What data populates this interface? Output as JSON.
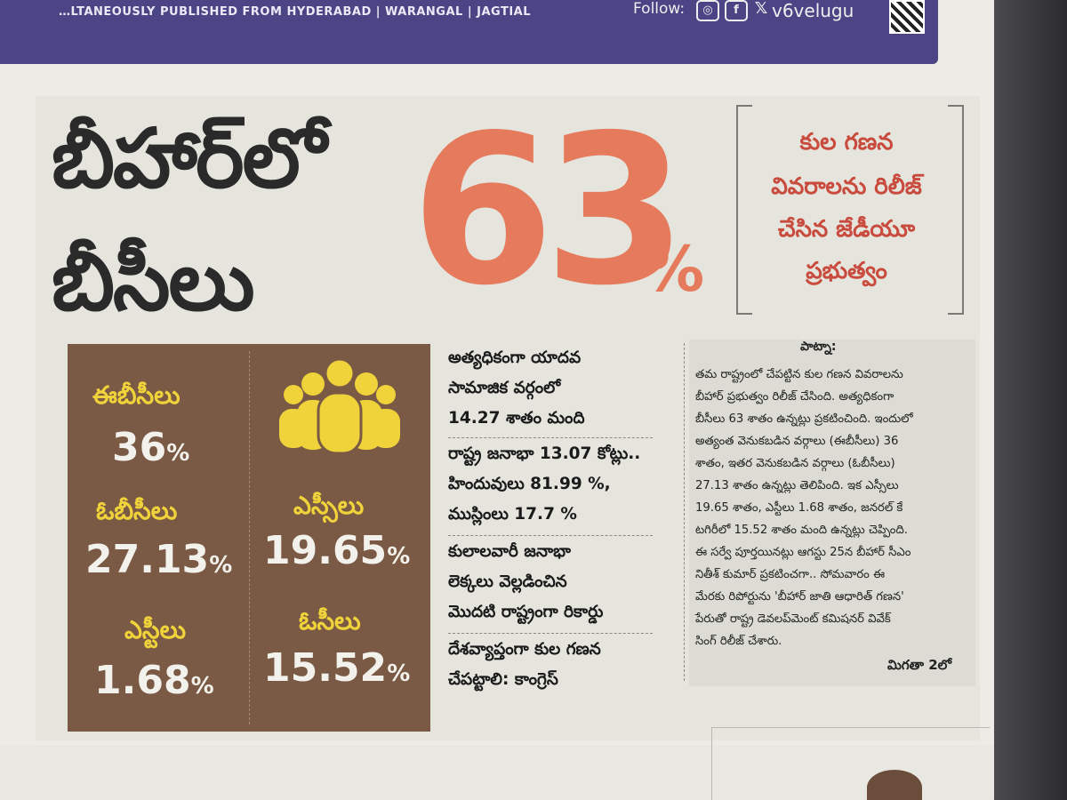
{
  "masthead": {
    "published_from": "…LTANEOUSLY PUBLISHED FROM HYDERABAD | WARANGAL | JAGTIAL",
    "follow_label": "Follow:",
    "handle": "v6velugu",
    "social_icons": [
      "instagram-icon",
      "facebook-icon",
      "x-icon"
    ]
  },
  "headline": {
    "line1": "బీహార్‌లో",
    "line2": "బీసీలు",
    "big_number": "63",
    "percent_sign": "%"
  },
  "subhead": {
    "lines": [
      "కుల గణన",
      "వివరాలను రిలీజ్",
      "చేసిన జేడీయూ",
      "ప్రభుత్వం"
    ]
  },
  "stats": [
    {
      "label": "ఈబీసీలు",
      "value": "36",
      "unit": "%"
    },
    {
      "label": "ఓబీసీలు",
      "value": "27.13",
      "unit": "%"
    },
    {
      "label": "ఎస్సీలు",
      "value": "19.65",
      "unit": "%"
    },
    {
      "label": "ఎస్టీలు",
      "value": "1.68",
      "unit": "%"
    },
    {
      "label": "ఓసీలు",
      "value": "15.52",
      "unit": "%"
    }
  ],
  "highlights": [
    "అత్యధికంగా యాదవ",
    "సామాజిక వర్గంలో",
    "14.27 శాతం మంది",
    "రాష్ట్ర జనాభా 13.07 కోట్లు..",
    "హిందువులు 81.99 %,",
    "ముస్లింలు 17.7 %",
    "కులాలవారీ జనాభా",
    "లెక్కలు వెల్లడించిన",
    "మొదటి రాష్ట్రంగా రికార్డు",
    "దేశవ్యాప్తంగా కుల గణన",
    "చేపట్టాలి: కాంగ్రెస్"
  ],
  "article": {
    "dateline": "పాట్నా:",
    "lines": [
      "తమ రాష్ట్రంలో చేపట్టిన కుల గణన వివరాలను",
      "బీహార్ ప్రభుత్వం రిలీజ్ చేసింది. అత్యధికంగా",
      "బీసీలు 63 శాతం ఉన్నట్లు ప్రకటించింది. ఇందులో",
      "అత్యంత వెనుకబడిన వర్గాలు (ఈబీసీలు) 36",
      "శాతం, ఇతర వెనుకబడిన వర్గాలు (ఓబీసీలు)",
      "27.13 శాతం ఉన్నట్లు తెలిపింది. ఇక ఎస్సీలు",
      "19.65 శాతం, ఎస్టీలు 1.68 శాతం, జనరల్ కే",
      "టగిరీలో 15.52 శాతం మంది ఉన్నట్లు చెప్పింది.",
      "ఈ సర్వే పూర్తయినట్లు ఆగస్టు 25న బీహార్ సీఎం",
      "నితీశ్ కుమార్ ప్రకటించగా.. సోమవారం ఈ",
      "మేరకు రిపోర్టును 'బీహార్ జాతి ఆధారిత్ గణన'",
      "పేరుతో రాష్ట్ర డెవలప్‌మెంట్ కమిషనర్ వివేక్",
      "సింగ్ రిలీజ్ చేశారు."
    ],
    "continued": "మిగతా 2లో"
  },
  "colors": {
    "accent_orange": "#e57a5c",
    "subhead_red": "#c84b3d",
    "stat_box_brown": "#7a5a44",
    "stat_label_yellow": "#f0d33a",
    "masthead_purple": "#4b4585"
  }
}
